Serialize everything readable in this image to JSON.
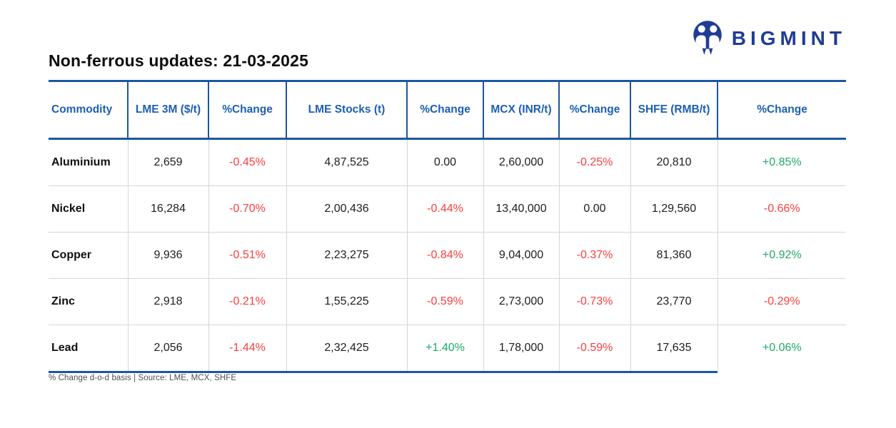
{
  "brand": {
    "name": "BIGMINT",
    "logo_color": "#203c96"
  },
  "title": "Non-ferrous updates: 21-03-2025",
  "footnote": "% Change d-o-d basis | Source: LME, MCX, SHFE",
  "colors": {
    "header_blue": "#1c5fb5",
    "border_blue": "#1c56a4",
    "negative_red": "#f93e3e",
    "positive_green": "#1fab66"
  },
  "chart_data": {
    "type": "table",
    "title": "Non-ferrous updates: 21-03-2025",
    "columns": [
      "Commodity",
      "LME 3M ($/t)",
      "%Change",
      "LME Stocks (t)",
      "%Change",
      "MCX (INR/t)",
      "%Change",
      "SHFE (RMB/t)",
      "%Change"
    ],
    "rows": [
      {
        "commodity": "Aluminium",
        "cells": [
          {
            "text": "2,659",
            "type": "value"
          },
          {
            "text": "-0.45%",
            "type": "down"
          },
          {
            "text": "4,87,525",
            "type": "value"
          },
          {
            "text": "0.00",
            "type": "flat"
          },
          {
            "text": "2,60,000",
            "type": "value"
          },
          {
            "text": "-0.25%",
            "type": "down"
          },
          {
            "text": "20,810",
            "type": "value"
          },
          {
            "text": "+0.85%",
            "type": "up"
          }
        ]
      },
      {
        "commodity": "Nickel",
        "cells": [
          {
            "text": "16,284",
            "type": "value"
          },
          {
            "text": "-0.70%",
            "type": "down"
          },
          {
            "text": "2,00,436",
            "type": "value"
          },
          {
            "text": "-0.44%",
            "type": "down"
          },
          {
            "text": "13,40,000",
            "type": "value"
          },
          {
            "text": "0.00",
            "type": "flat"
          },
          {
            "text": "1,29,560",
            "type": "value"
          },
          {
            "text": "-0.66%",
            "type": "down"
          }
        ]
      },
      {
        "commodity": "Copper",
        "cells": [
          {
            "text": "9,936",
            "type": "value"
          },
          {
            "text": "-0.51%",
            "type": "down"
          },
          {
            "text": "2,23,275",
            "type": "value"
          },
          {
            "text": "-0.84%",
            "type": "down"
          },
          {
            "text": "9,04,000",
            "type": "value"
          },
          {
            "text": "-0.37%",
            "type": "down"
          },
          {
            "text": "81,360",
            "type": "value"
          },
          {
            "text": "+0.92%",
            "type": "up"
          }
        ]
      },
      {
        "commodity": "Zinc",
        "cells": [
          {
            "text": "2,918",
            "type": "value"
          },
          {
            "text": "-0.21%",
            "type": "down"
          },
          {
            "text": "1,55,225",
            "type": "value"
          },
          {
            "text": "-0.59%",
            "type": "down"
          },
          {
            "text": "2,73,000",
            "type": "value"
          },
          {
            "text": "-0.73%",
            "type": "down"
          },
          {
            "text": "23,770",
            "type": "value"
          },
          {
            "text": "-0.29%",
            "type": "down"
          }
        ]
      },
      {
        "commodity": "Lead",
        "cells": [
          {
            "text": "2,056",
            "type": "value"
          },
          {
            "text": "-1.44%",
            "type": "down"
          },
          {
            "text": "2,32,425",
            "type": "value"
          },
          {
            "text": "+1.40%",
            "type": "up"
          },
          {
            "text": "1,78,000",
            "type": "value"
          },
          {
            "text": "-0.59%",
            "type": "down"
          },
          {
            "text": "17,635",
            "type": "value"
          },
          {
            "text": "+0.06%",
            "type": "up"
          }
        ]
      }
    ]
  }
}
